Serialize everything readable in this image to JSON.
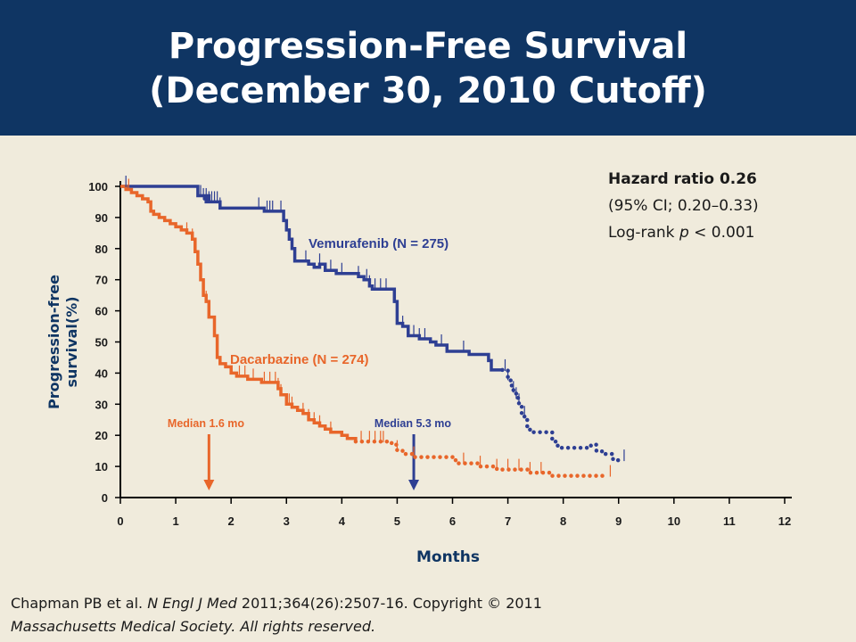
{
  "header": {
    "title_line1": "Progression-Free Survival",
    "title_line2": "(December 30, 2010 Cutoff)",
    "background": "#0f3563"
  },
  "stats": {
    "hazard_ratio": "Hazard ratio 0.26",
    "ci": "(95% CI; 0.20–0.33)",
    "logrank_prefix": "Log-rank ",
    "logrank_p": "p",
    "logrank_value": " < 0.001"
  },
  "footer": {
    "authors": "Chapman PB et al. ",
    "journal": "N Engl J Med",
    "citation": " 2011;364(26):2507-16. Copyright © 2011",
    "line2": "Massachusetts Medical Society. All rights reserved."
  },
  "chart_data": {
    "type": "line",
    "title": "",
    "xlabel": "Months",
    "ylabel_line1": "Progression-free",
    "ylabel_line2": "survival(%)",
    "xlim": [
      0,
      12
    ],
    "ylim": [
      0,
      100
    ],
    "xticks": [
      "0",
      "1",
      "2",
      "3",
      "4",
      "5",
      "6",
      "7",
      "8",
      "9",
      "10",
      "11",
      "12"
    ],
    "yticks": [
      "0",
      "10",
      "20",
      "30",
      "40",
      "50",
      "60",
      "70",
      "80",
      "90",
      "100"
    ],
    "grid": false,
    "series": [
      {
        "name": "Vemurafenib (N = 275)",
        "color": "#2e3f93",
        "points": [
          [
            0,
            100
          ],
          [
            1.2,
            100
          ],
          [
            1.4,
            97
          ],
          [
            1.6,
            95
          ],
          [
            1.55,
            96
          ],
          [
            1.5,
            96
          ],
          [
            1.6,
            95
          ],
          [
            1.8,
            93
          ],
          [
            2.0,
            93
          ],
          [
            2.1,
            93
          ],
          [
            2.4,
            93
          ],
          [
            2.6,
            92
          ],
          [
            2.65,
            92
          ],
          [
            2.9,
            92
          ],
          [
            2.95,
            89
          ],
          [
            3.0,
            86
          ],
          [
            3.05,
            83
          ],
          [
            3.1,
            80
          ],
          [
            3.15,
            76
          ],
          [
            3.3,
            76
          ],
          [
            3.4,
            75
          ],
          [
            3.5,
            74
          ],
          [
            3.6,
            75
          ],
          [
            3.7,
            73
          ],
          [
            3.9,
            72
          ],
          [
            4.1,
            72
          ],
          [
            4.3,
            71
          ],
          [
            4.4,
            70
          ],
          [
            4.5,
            68
          ],
          [
            4.55,
            67
          ],
          [
            4.6,
            67
          ],
          [
            4.9,
            67
          ],
          [
            4.95,
            63
          ],
          [
            5.0,
            56
          ],
          [
            5.1,
            55
          ],
          [
            5.2,
            52
          ],
          [
            5.4,
            51
          ],
          [
            5.6,
            50
          ],
          [
            5.7,
            49
          ],
          [
            5.9,
            47
          ],
          [
            6.1,
            47
          ],
          [
            6.3,
            46
          ],
          [
            6.6,
            46
          ],
          [
            6.65,
            44
          ],
          [
            6.7,
            41
          ],
          [
            6.9,
            41
          ]
        ],
        "dotted": [
          [
            6.9,
            41
          ],
          [
            7.0,
            38
          ],
          [
            7.05,
            36
          ],
          [
            7.1,
            34
          ],
          [
            7.15,
            32
          ],
          [
            7.2,
            30
          ],
          [
            7.25,
            27
          ],
          [
            7.3,
            26
          ],
          [
            7.35,
            22
          ],
          [
            7.4,
            21
          ],
          [
            7.6,
            21
          ],
          [
            7.75,
            21
          ],
          [
            7.8,
            18
          ],
          [
            7.9,
            16
          ],
          [
            8.2,
            16
          ],
          [
            8.5,
            17
          ],
          [
            8.6,
            15
          ],
          [
            8.7,
            14
          ],
          [
            8.9,
            12
          ],
          [
            9.05,
            12
          ]
        ],
        "median_label": "Median 5.3 mo",
        "median_x": 5.3
      },
      {
        "name": "Dacarbazine (N = 274)",
        "color": "#e8662a",
        "points": [
          [
            0,
            100
          ],
          [
            0.1,
            99
          ],
          [
            0.2,
            98
          ],
          [
            0.3,
            97
          ],
          [
            0.4,
            96
          ],
          [
            0.5,
            95
          ],
          [
            0.55,
            92
          ],
          [
            0.6,
            91
          ],
          [
            0.7,
            90
          ],
          [
            0.8,
            89
          ],
          [
            0.9,
            88
          ],
          [
            1.0,
            87
          ],
          [
            1.1,
            86
          ],
          [
            1.2,
            85
          ],
          [
            1.3,
            83
          ],
          [
            1.35,
            79
          ],
          [
            1.4,
            75
          ],
          [
            1.45,
            70
          ],
          [
            1.5,
            65
          ],
          [
            1.55,
            63
          ],
          [
            1.6,
            58
          ],
          [
            1.7,
            52
          ],
          [
            1.75,
            45
          ],
          [
            1.8,
            43
          ],
          [
            1.9,
            42
          ],
          [
            2.0,
            40
          ],
          [
            2.1,
            39
          ],
          [
            2.3,
            38
          ],
          [
            2.5,
            38
          ],
          [
            2.55,
            37
          ],
          [
            2.8,
            37
          ],
          [
            2.85,
            35
          ],
          [
            2.9,
            33
          ],
          [
            3.0,
            30
          ],
          [
            3.1,
            29
          ],
          [
            3.2,
            28
          ],
          [
            3.3,
            27
          ],
          [
            3.4,
            25
          ],
          [
            3.5,
            24
          ],
          [
            3.6,
            23
          ],
          [
            3.7,
            22
          ],
          [
            3.8,
            21
          ],
          [
            4.0,
            20
          ],
          [
            4.1,
            19
          ],
          [
            4.25,
            18
          ]
        ],
        "dotted": [
          [
            4.25,
            18
          ],
          [
            4.6,
            18
          ],
          [
            4.9,
            17
          ],
          [
            5.0,
            15
          ],
          [
            5.15,
            14
          ],
          [
            5.3,
            13
          ],
          [
            5.6,
            13
          ],
          [
            6.0,
            12
          ],
          [
            6.1,
            11
          ],
          [
            6.5,
            10
          ],
          [
            6.8,
            9
          ],
          [
            7.2,
            9
          ],
          [
            7.4,
            8
          ],
          [
            7.6,
            8
          ],
          [
            7.8,
            7
          ],
          [
            8.1,
            7
          ],
          [
            8.3,
            7
          ],
          [
            8.5,
            7
          ],
          [
            8.8,
            7
          ]
        ],
        "median_label": "Median 1.6 mo",
        "median_x": 1.6
      }
    ],
    "censor_marks": {
      "vemurafenib": [
        0.1,
        1.45,
        1.5,
        1.55,
        1.6,
        1.65,
        1.7,
        1.75,
        1.8,
        2.5,
        2.65,
        2.7,
        2.75,
        2.9,
        2.95,
        3.0,
        3.05,
        3.1,
        3.35,
        3.6,
        3.8,
        4.0,
        4.3,
        4.45,
        4.5,
        4.6,
        4.7,
        4.8,
        5.0,
        5.1,
        5.2,
        5.3,
        5.4,
        5.5,
        5.8,
        6.2,
        6.7,
        6.95,
        7.0,
        7.1,
        7.15,
        7.2,
        7.3,
        9.1
      ],
      "dacarbazine": [
        0.15,
        1.2,
        1.3,
        1.45,
        1.55,
        1.6,
        2.15,
        2.25,
        2.4,
        2.6,
        2.7,
        2.8,
        2.85,
        2.9,
        3.05,
        3.1,
        3.3,
        3.4,
        3.5,
        3.6,
        3.8,
        4.35,
        4.5,
        4.6,
        4.7,
        4.75,
        5.0,
        5.3,
        6.2,
        6.5,
        6.8,
        7.0,
        7.2,
        7.4,
        7.6,
        8.85
      ]
    },
    "colors": {
      "vemurafenib": "#2e3f93",
      "dacarbazine": "#e8662a",
      "axis": "#000000"
    }
  }
}
